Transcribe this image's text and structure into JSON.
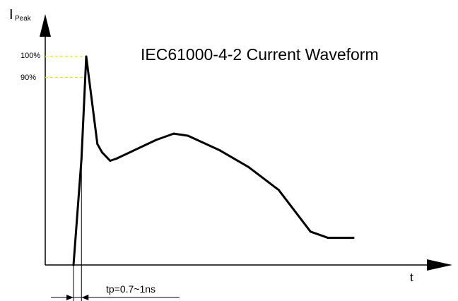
{
  "chart_data": {
    "type": "line",
    "title": "IEC61000-4-2 Current Waveform",
    "ylabel": {
      "main": "I",
      "sub": "Peak"
    },
    "xlabel": "t",
    "ytick_labels": [
      "100%",
      "90%"
    ],
    "yticks": [
      100,
      90
    ],
    "ylim": [
      0,
      110
    ],
    "annotation": "tp=0.7~1ns",
    "series": [
      {
        "values": [
          {
            "x": 0.0,
            "y": 0
          },
          {
            "x": 0.25,
            "y": 51
          },
          {
            "x": 0.4,
            "y": 100
          },
          {
            "x": 0.75,
            "y": 58
          },
          {
            "x": 0.9,
            "y": 54
          },
          {
            "x": 1.15,
            "y": 50
          },
          {
            "x": 1.35,
            "y": 51
          },
          {
            "x": 2.6,
            "y": 60
          },
          {
            "x": 3.15,
            "y": 63
          },
          {
            "x": 3.6,
            "y": 62
          },
          {
            "x": 4.6,
            "y": 55
          },
          {
            "x": 5.5,
            "y": 47
          },
          {
            "x": 6.45,
            "y": 36
          },
          {
            "x": 7.45,
            "y": 16
          },
          {
            "x": 8.0,
            "y": 13
          },
          {
            "x": 8.8,
            "y": 13
          }
        ]
      }
    ]
  }
}
